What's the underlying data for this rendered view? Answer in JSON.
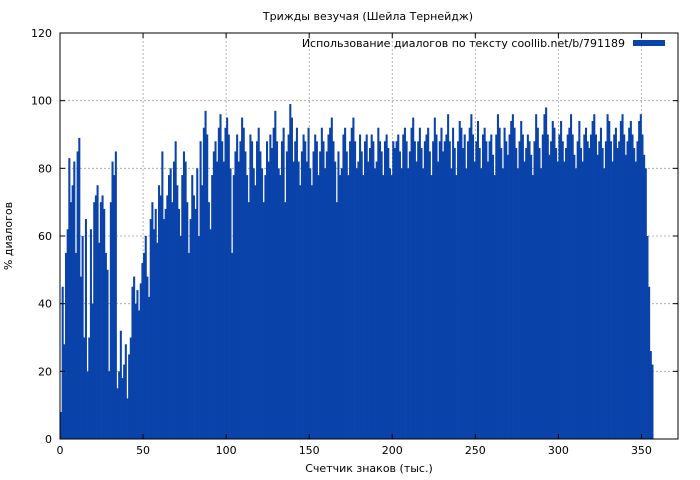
{
  "chart_data": {
    "type": "bar",
    "title": "Трижды везучая (Шейла Тернейдж)",
    "xlabel": "Счетчик знаков (тыс.)",
    "ylabel": "% диалогов",
    "xlim": [
      0,
      372
    ],
    "ylim": [
      0,
      120
    ],
    "xticks": [
      0,
      50,
      100,
      150,
      200,
      250,
      300,
      350
    ],
    "yticks": [
      0,
      20,
      40,
      60,
      80,
      100,
      120
    ],
    "grid": true,
    "legend_position": "top-right",
    "series": [
      {
        "name": "Использование диалогов по тексту coollib.net/b/791189",
        "color": "#0a43aa",
        "x_step": 1,
        "x_start": 0,
        "values": [
          8,
          45,
          28,
          55,
          62,
          83,
          70,
          75,
          82,
          55,
          85,
          89,
          48,
          60,
          30,
          65,
          20,
          30,
          62,
          40,
          70,
          72,
          75,
          58,
          70,
          72,
          68,
          55,
          50,
          20,
          70,
          82,
          78,
          85,
          15,
          20,
          32,
          18,
          22,
          28,
          12,
          25,
          30,
          45,
          48,
          40,
          44,
          38,
          46,
          52,
          55,
          60,
          48,
          42,
          65,
          70,
          62,
          68,
          58,
          75,
          72,
          85,
          65,
          68,
          72,
          78,
          80,
          70,
          82,
          88,
          75,
          68,
          60,
          78,
          85,
          82,
          70,
          55,
          65,
          78,
          72,
          68,
          80,
          60,
          88,
          75,
          92,
          97,
          90,
          70,
          62,
          78,
          85,
          88,
          82,
          92,
          96,
          88,
          82,
          92,
          95,
          90,
          80,
          55,
          78,
          85,
          90,
          82,
          88,
          95,
          92,
          85,
          78,
          70,
          90,
          88,
          80,
          75,
          88,
          92,
          85,
          80,
          70,
          78,
          88,
          82,
          90,
          86,
          92,
          97,
          88,
          80,
          78,
          88,
          92,
          70,
          85,
          90,
          99,
          95,
          82,
          88,
          92,
          82,
          75,
          85,
          90,
          88,
          82,
          92,
          80,
          75,
          85,
          90,
          88,
          78,
          85,
          92,
          88,
          80,
          85,
          90,
          92,
          95,
          88,
          82,
          70,
          85,
          78,
          80,
          90,
          92,
          85,
          78,
          88,
          92,
          95,
          88,
          80,
          82,
          90,
          85,
          78,
          88,
          90,
          82,
          86,
          90,
          88,
          80,
          82,
          92,
          88,
          85,
          78,
          88,
          90,
          86,
          80,
          78,
          88,
          86,
          88,
          90,
          85,
          80,
          90,
          92,
          88,
          80,
          85,
          92,
          95,
          88,
          82,
          88,
          92,
          86,
          80,
          88,
          90,
          92,
          85,
          78,
          88,
          95,
          90,
          82,
          88,
          92,
          85,
          88,
          90,
          96,
          88,
          80,
          92,
          86,
          78,
          88,
          94,
          92,
          86,
          90,
          80,
          88,
          92,
          96,
          90,
          82,
          88,
          94,
          86,
          80,
          90,
          92,
          88,
          82,
          88,
          90,
          84,
          78,
          90,
          96,
          92,
          86,
          80,
          92,
          88,
          84,
          90,
          94,
          96,
          92,
          86,
          80,
          88,
          94,
          90,
          82,
          86,
          90,
          88,
          84,
          78,
          88,
          96,
          92,
          86,
          80,
          90,
          96,
          98,
          90,
          84,
          88,
          94,
          92,
          86,
          82,
          90,
          94,
          88,
          82,
          86,
          90,
          92,
          96,
          90,
          84,
          80,
          88,
          94,
          86,
          82,
          90,
          92,
          88,
          86,
          90,
          94,
          96,
          90,
          84,
          88,
          92,
          86,
          80,
          88,
          96,
          94,
          88,
          82,
          90,
          92,
          86,
          88,
          94,
          96,
          90,
          84,
          88,
          92,
          94,
          90,
          86,
          82,
          88,
          94,
          96,
          90,
          84,
          80,
          60,
          45,
          26,
          22
        ]
      }
    ]
  }
}
